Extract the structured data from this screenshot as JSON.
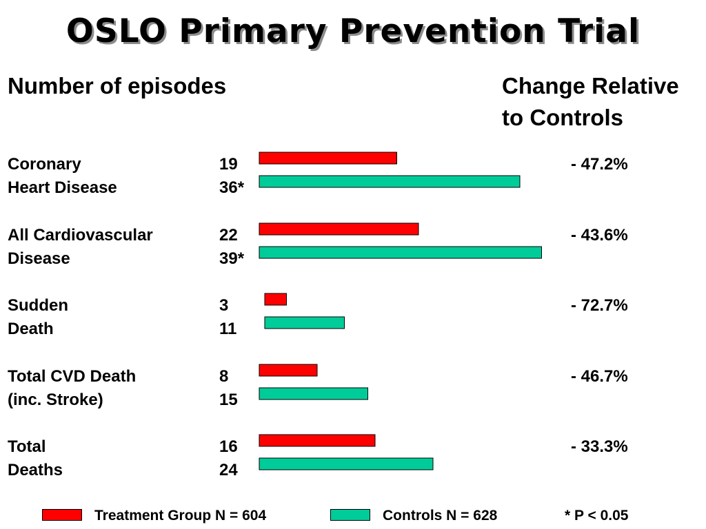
{
  "title": "OSLO Primary Prevention Trial",
  "header": {
    "left": "Number of episodes",
    "right": "Change Relative\nto Controls"
  },
  "colors": {
    "treatment": "#ff0000",
    "controls": "#00cc99"
  },
  "chart_data": {
    "type": "bar",
    "orientation": "horizontal",
    "categories": [
      {
        "line1": "Coronary",
        "line2": "Heart Disease"
      },
      {
        "line1": "All Cardiovascular",
        "line2": "Disease"
      },
      {
        "line1": "Sudden",
        "line2": "Death"
      },
      {
        "line1": "Total CVD Death",
        "line2": "(inc. Stroke)"
      },
      {
        "line1": "Total",
        "line2": "Deaths"
      }
    ],
    "series": [
      {
        "name": "Treatment Group N = 604",
        "values": [
          19,
          22,
          3,
          8,
          16
        ],
        "labels": [
          "19",
          "22",
          "3",
          "8",
          "16"
        ]
      },
      {
        "name": "Controls N = 628",
        "values": [
          36,
          39,
          11,
          15,
          24
        ],
        "labels": [
          "36*",
          "39*",
          "11",
          "15",
          "24"
        ]
      }
    ],
    "change": [
      "- 47.2%",
      "- 43.6%",
      "- 72.7%",
      "- 46.7%",
      "- 33.3%"
    ],
    "footnote": "* P < 0.05"
  },
  "legend": {
    "treatment_label": "Treatment Group N = 604",
    "controls_label": "Controls N = 628",
    "footnote": "* P < 0.05"
  }
}
